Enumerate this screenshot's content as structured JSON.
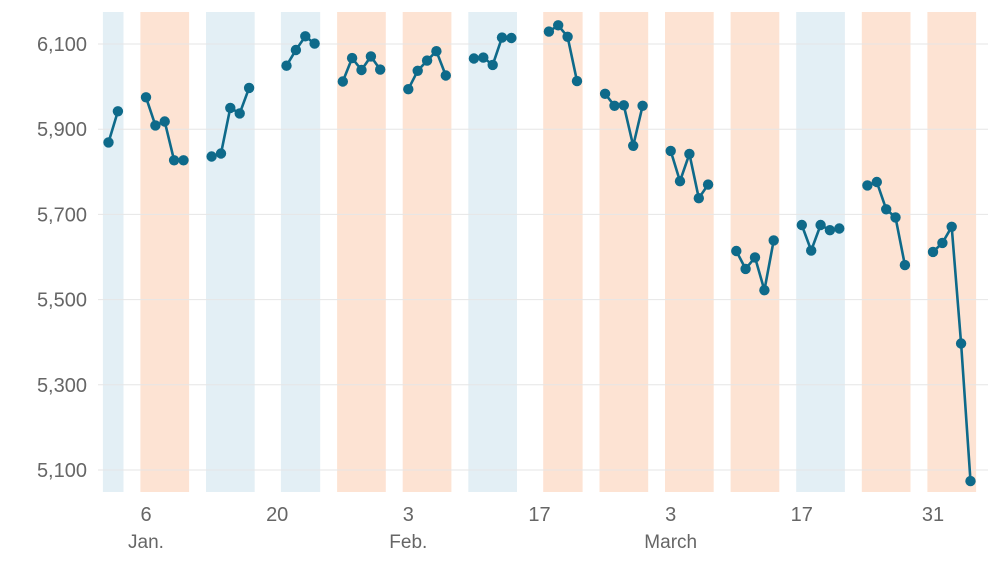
{
  "chart_data": {
    "type": "line",
    "title": "",
    "xlabel": "",
    "ylabel": "",
    "ylim": [
      5050,
      6175
    ],
    "y_ticks": [
      5100,
      5300,
      5500,
      5700,
      5900,
      6100
    ],
    "y_tick_labels": [
      "5,100",
      "5,300",
      "5,500",
      "5,700",
      "5,900",
      "6,100"
    ],
    "x_ticks": [
      {
        "date": "2025-01-06",
        "label": "6"
      },
      {
        "date": "2025-01-20",
        "label": "20"
      },
      {
        "date": "2025-02-03",
        "label": "3"
      },
      {
        "date": "2025-02-17",
        "label": "17"
      },
      {
        "date": "2025-03-03",
        "label": "3"
      },
      {
        "date": "2025-03-17",
        "label": "17"
      },
      {
        "date": "2025-03-31",
        "label": "31"
      }
    ],
    "month_labels": [
      {
        "date": "2025-01-06",
        "label": "Jan."
      },
      {
        "date": "2025-02-03",
        "label": "Feb."
      },
      {
        "date": "2025-03-03",
        "label": "March"
      }
    ],
    "grid": true,
    "colors": {
      "line": "#0e6a8a",
      "band_blue": "#e3eff5",
      "band_orange": "#fde3d3",
      "grid": "#e6e6e6",
      "tick_text": "#666666"
    },
    "bands": [
      {
        "start": "2025-01-02",
        "end": "2025-01-03",
        "color": "blue"
      },
      {
        "start": "2025-01-06",
        "end": "2025-01-10",
        "color": "orange"
      },
      {
        "start": "2025-01-13",
        "end": "2025-01-17",
        "color": "blue"
      },
      {
        "start": "2025-01-21",
        "end": "2025-01-24",
        "color": "blue"
      },
      {
        "start": "2025-01-27",
        "end": "2025-01-31",
        "color": "orange"
      },
      {
        "start": "2025-02-03",
        "end": "2025-02-07",
        "color": "orange"
      },
      {
        "start": "2025-02-10",
        "end": "2025-02-14",
        "color": "blue"
      },
      {
        "start": "2025-02-18",
        "end": "2025-02-21",
        "color": "orange"
      },
      {
        "start": "2025-02-24",
        "end": "2025-02-28",
        "color": "orange"
      },
      {
        "start": "2025-03-03",
        "end": "2025-03-07",
        "color": "orange"
      },
      {
        "start": "2025-03-10",
        "end": "2025-03-14",
        "color": "orange"
      },
      {
        "start": "2025-03-17",
        "end": "2025-03-21",
        "color": "blue"
      },
      {
        "start": "2025-03-24",
        "end": "2025-03-28",
        "color": "orange"
      },
      {
        "start": "2025-03-31",
        "end": "2025-04-04",
        "color": "orange"
      }
    ],
    "series": [
      {
        "segments": [
          [
            [
              "2025-01-02",
              5869
            ],
            [
              "2025-01-03",
              5942
            ]
          ],
          [
            [
              "2025-01-06",
              5975
            ],
            [
              "2025-01-07",
              5909
            ],
            [
              "2025-01-08",
              5918
            ],
            [
              "2025-01-09",
              5827
            ],
            [
              "2025-01-10",
              5827
            ]
          ],
          [
            [
              "2025-01-13",
              5836
            ],
            [
              "2025-01-14",
              5843
            ],
            [
              "2025-01-15",
              5950
            ],
            [
              "2025-01-16",
              5937
            ],
            [
              "2025-01-17",
              5997
            ]
          ],
          [
            [
              "2025-01-21",
              6049
            ],
            [
              "2025-01-22",
              6086
            ],
            [
              "2025-01-23",
              6118
            ],
            [
              "2025-01-24",
              6101
            ]
          ],
          [
            [
              "2025-01-27",
              6012
            ],
            [
              "2025-01-28",
              6067
            ],
            [
              "2025-01-29",
              6039
            ],
            [
              "2025-01-30",
              6071
            ],
            [
              "2025-01-31",
              6040
            ]
          ],
          [
            [
              "2025-02-03",
              5994
            ],
            [
              "2025-02-04",
              6037
            ],
            [
              "2025-02-05",
              6061
            ],
            [
              "2025-02-06",
              6083
            ],
            [
              "2025-02-07",
              6026
            ]
          ],
          [
            [
              "2025-02-10",
              6066
            ],
            [
              "2025-02-11",
              6068
            ],
            [
              "2025-02-12",
              6051
            ],
            [
              "2025-02-13",
              6115
            ],
            [
              "2025-02-14",
              6114
            ]
          ],
          [
            [
              "2025-02-18",
              6129
            ],
            [
              "2025-02-19",
              6144
            ],
            [
              "2025-02-20",
              6117
            ],
            [
              "2025-02-21",
              6013
            ]
          ],
          [
            [
              "2025-02-24",
              5983
            ],
            [
              "2025-02-25",
              5955
            ],
            [
              "2025-02-26",
              5956
            ],
            [
              "2025-02-27",
              5861
            ],
            [
              "2025-02-28",
              5955
            ]
          ],
          [
            [
              "2025-03-03",
              5849
            ],
            [
              "2025-03-04",
              5778
            ],
            [
              "2025-03-05",
              5842
            ],
            [
              "2025-03-06",
              5738
            ],
            [
              "2025-03-07",
              5770
            ]
          ],
          [
            [
              "2025-03-10",
              5614
            ],
            [
              "2025-03-11",
              5572
            ],
            [
              "2025-03-12",
              5599
            ],
            [
              "2025-03-13",
              5522
            ],
            [
              "2025-03-14",
              5639
            ]
          ],
          [
            [
              "2025-03-17",
              5675
            ],
            [
              "2025-03-18",
              5615
            ],
            [
              "2025-03-19",
              5675
            ],
            [
              "2025-03-20",
              5663
            ],
            [
              "2025-03-21",
              5667
            ]
          ],
          [
            [
              "2025-03-24",
              5768
            ],
            [
              "2025-03-25",
              5776
            ],
            [
              "2025-03-26",
              5712
            ],
            [
              "2025-03-27",
              5693
            ],
            [
              "2025-03-28",
              5581
            ]
          ],
          [
            [
              "2025-03-31",
              5612
            ],
            [
              "2025-04-01",
              5633
            ],
            [
              "2025-04-02",
              5671
            ],
            [
              "2025-04-03",
              5397
            ],
            [
              "2025-04-04",
              5074
            ]
          ]
        ]
      }
    ]
  }
}
